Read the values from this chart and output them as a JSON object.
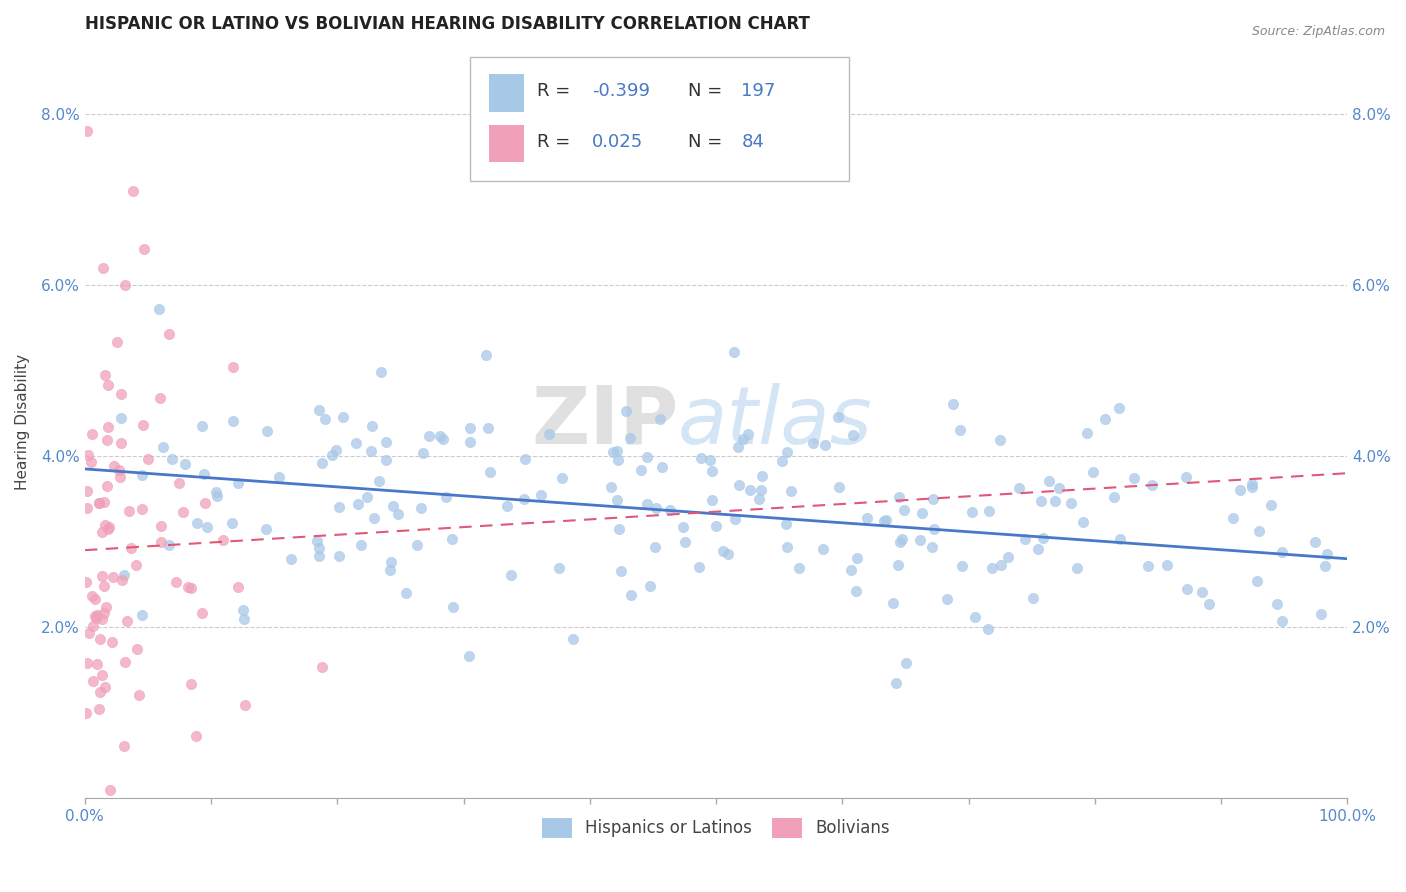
{
  "title": "HISPANIC OR LATINO VS BOLIVIAN HEARING DISABILITY CORRELATION CHART",
  "source_text": "Source: ZipAtlas.com",
  "ylabel": "Hearing Disability",
  "watermark_zip": "ZIP",
  "watermark_atlas": "atlas",
  "legend_label1": "Hispanics or Latinos",
  "legend_label2": "Bolivians",
  "blue_color": "#A8C8E8",
  "pink_color": "#F0A0B8",
  "blue_line_color": "#4878C8",
  "pink_line_color": "#E05878",
  "title_fontsize": 12,
  "axis_label_fontsize": 11,
  "tick_fontsize": 11,
  "xlim": [
    0,
    1.0
  ],
  "ylim": [
    0,
    0.088
  ],
  "blue_R": -0.399,
  "pink_R": 0.025,
  "blue_N": 197,
  "pink_N": 84,
  "blue_seed": 12,
  "pink_seed": 7
}
